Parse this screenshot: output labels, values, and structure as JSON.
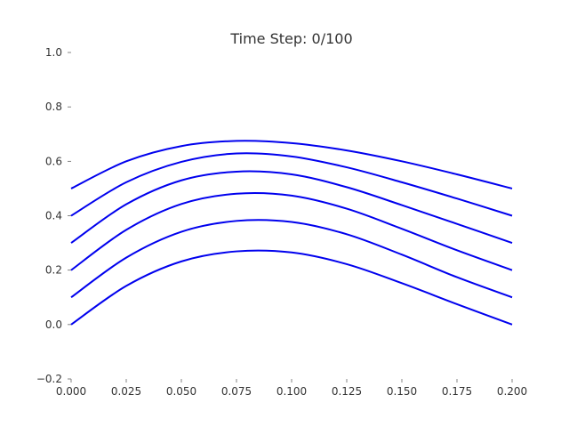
{
  "chart_data": {
    "type": "line",
    "title": "Time Step: 0/100",
    "xlabel": "",
    "ylabel": "",
    "xlim": [
      0.0,
      0.2
    ],
    "ylim": [
      -0.2,
      1.0
    ],
    "x_ticks": [
      "0.000",
      "0.025",
      "0.050",
      "0.075",
      "0.100",
      "0.125",
      "0.150",
      "0.175",
      "0.200"
    ],
    "y_ticks": [
      "−0.2",
      "0.0",
      "0.2",
      "0.4",
      "0.6",
      "0.8",
      "1.0"
    ],
    "grid": false,
    "line_color": "#0000ee",
    "x": [
      0.0,
      0.025,
      0.05,
      0.075,
      0.1,
      0.125,
      0.15,
      0.175,
      0.2
    ],
    "series": [
      {
        "values": [
          0.0,
          0.142,
          0.232,
          0.269,
          0.265,
          0.222,
          0.152,
          0.075,
          0.0
        ]
      },
      {
        "values": [
          0.1,
          0.246,
          0.341,
          0.381,
          0.377,
          0.332,
          0.257,
          0.174,
          0.1
        ]
      },
      {
        "values": [
          0.2,
          0.348,
          0.443,
          0.481,
          0.474,
          0.426,
          0.352,
          0.273,
          0.2
        ]
      },
      {
        "values": [
          0.3,
          0.442,
          0.53,
          0.562,
          0.552,
          0.505,
          0.439,
          0.37,
          0.3
        ]
      },
      {
        "values": [
          0.4,
          0.523,
          0.598,
          0.629,
          0.618,
          0.578,
          0.523,
          0.463,
          0.4
        ]
      },
      {
        "values": [
          0.5,
          0.6,
          0.656,
          0.675,
          0.667,
          0.64,
          0.6,
          0.552,
          0.5
        ]
      }
    ]
  }
}
